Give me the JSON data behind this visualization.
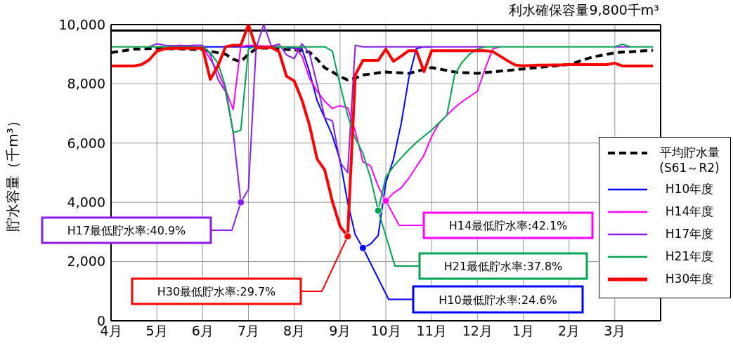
{
  "chart_data": {
    "type": "line",
    "ylabel": "貯水容量（千m³）",
    "categories": [
      "4月",
      null,
      null,
      null,
      null,
      null,
      "5月",
      null,
      null,
      null,
      null,
      null,
      "6月",
      null,
      null,
      null,
      null,
      null,
      "7月",
      null,
      null,
      null,
      null,
      null,
      "8月",
      null,
      null,
      null,
      null,
      null,
      "9月",
      null,
      null,
      null,
      null,
      null,
      "10月",
      null,
      null,
      null,
      null,
      null,
      "11月",
      null,
      null,
      null,
      null,
      null,
      "12月",
      null,
      null,
      null,
      null,
      null,
      "1月",
      null,
      null,
      null,
      null,
      null,
      "2月",
      null,
      null,
      null,
      null,
      null,
      "3月",
      null,
      null,
      null,
      null,
      null
    ],
    "ylim": [
      0,
      10000
    ],
    "yticks": [
      0,
      {
        "value": 2000,
        "label": "2,000"
      },
      {
        "value": 4000,
        "label": "4,000"
      },
      {
        "value": 6000,
        "label": "6,000"
      },
      {
        "value": 8000,
        "label": "8,000"
      },
      {
        "value": 10000,
        "label": "10,000"
      }
    ],
    "grid": true,
    "legend": "bottom right",
    "marker": "none",
    "ref_lines": [
      {
        "axis": "y",
        "value": 9800,
        "label": "利水確保容量9,800千m³",
        "color": "#000000"
      }
    ],
    "annotations": [
      "H17最低貯水率:40.9%",
      "H30最低貯水率:29.7%",
      "H10最低貯水率:24.6%",
      "H21最低貯水率:37.8%",
      "H14最低貯水率:42.1%"
    ],
    "series": [
      {
        "name": "平均貯水量 (S61～R2)",
        "color": "#000000",
        "line_style": "dashed",
        "values": [
          9050,
          9090,
          9130,
          9170,
          9180,
          9190,
          9200,
          9190,
          9180,
          9180,
          9170,
          9160,
          9150,
          9100,
          9050,
          9000,
          8830,
          8750,
          9000,
          9180,
          9210,
          9200,
          9180,
          9160,
          9150,
          9110,
          9070,
          8830,
          8540,
          8400,
          8250,
          8130,
          8190,
          8300,
          8330,
          8370,
          8400,
          8380,
          8370,
          8350,
          8420,
          8480,
          8550,
          8500,
          8450,
          8400,
          8380,
          8370,
          8350,
          8380,
          8400,
          8430,
          8450,
          8480,
          8500,
          8530,
          8550,
          8580,
          8600,
          8630,
          8650,
          8730,
          8820,
          8900,
          8950,
          9000,
          9050,
          9070,
          9080,
          9100,
          9120,
          9130
        ]
      },
      {
        "name": "H10年度",
        "color": "#0000ff",
        "line_style": "solid",
        "values": [
          null,
          null,
          null,
          null,
          null,
          null,
          null,
          null,
          null,
          null,
          null,
          null,
          9250,
          9250,
          9250,
          9250,
          9250,
          9250,
          9250,
          9250,
          null,
          null,
          null,
          9250,
          9200,
          9200,
          8400,
          7430,
          6840,
          6250,
          5430,
          4000,
          2900,
          2460,
          2590,
          2880,
          4660,
          5450,
          6640,
          8180,
          9190,
          9250,
          9250,
          null,
          null,
          null,
          null,
          null,
          null,
          null,
          null,
          null,
          null,
          null,
          null,
          null,
          null,
          null,
          null,
          null,
          null,
          null,
          null,
          null,
          null,
          null,
          null,
          null,
          null,
          null,
          null,
          null
        ]
      },
      {
        "name": "H14年度",
        "color": "#ff00ff",
        "line_style": "solid",
        "values": [
          null,
          null,
          null,
          null,
          null,
          null,
          null,
          null,
          9280,
          9300,
          9280,
          9260,
          9250,
          8830,
          8420,
          7810,
          7130,
          9260,
          9300,
          9290,
          9280,
          9270,
          9260,
          null,
          9250,
          8950,
          8190,
          7750,
          7410,
          7170,
          7260,
          7190,
          6400,
          5370,
          5230,
          4540,
          4050,
          4310,
          4480,
          4810,
          5200,
          5590,
          6220,
          6680,
          6940,
          7190,
          7400,
          7570,
          7750,
          8500,
          9180,
          9250,
          null,
          null,
          null,
          null,
          null,
          null,
          null,
          null,
          null,
          null,
          null,
          null,
          null,
          null,
          null,
          null,
          null,
          null,
          null,
          null
        ]
      },
      {
        "name": "H17年度",
        "color": "#8b1cf0",
        "line_style": "solid",
        "values": [
          null,
          null,
          null,
          null,
          null,
          9250,
          9350,
          9300,
          9290,
          9280,
          9290,
          9300,
          9300,
          9000,
          8150,
          7740,
          6380,
          4000,
          4430,
          9200,
          10000,
          9270,
          9340,
          8970,
          8850,
          9350,
          9030,
          7980,
          6850,
          6750,
          5350,
          5000,
          9300,
          9250,
          9250,
          9250,
          9250,
          9250,
          9250,
          9250,
          9250,
          9250,
          9250,
          9250,
          9250,
          9250,
          9250,
          9250,
          9250,
          9250,
          null,
          null,
          null,
          null,
          null,
          null,
          null,
          null,
          null,
          null,
          null,
          null,
          null,
          null,
          null,
          null,
          9250,
          9250,
          9250,
          null,
          null,
          null
        ]
      },
      {
        "name": "H21年度",
        "color": "#00a550",
        "line_style": "solid",
        "values": [
          9250,
          9250,
          9250,
          9250,
          9250,
          9250,
          9250,
          9250,
          9250,
          9250,
          9250,
          9250,
          9250,
          9050,
          8700,
          7900,
          6350,
          6430,
          9180,
          9250,
          9250,
          9250,
          9250,
          9250,
          9250,
          9250,
          9250,
          9250,
          9250,
          9100,
          7970,
          6930,
          6160,
          5650,
          4820,
          3720,
          4850,
          5210,
          5500,
          5770,
          6020,
          6230,
          6440,
          6690,
          6940,
          8300,
          8730,
          9010,
          9170,
          9250,
          9250,
          9250,
          9250,
          9250,
          9250,
          9250,
          9250,
          9250,
          9250,
          9250,
          9250,
          9250,
          9250,
          9250,
          9250,
          9250,
          9250,
          9340,
          9250,
          9250,
          9250,
          9250
        ]
      },
      {
        "name": "H30年度",
        "color": "#ff0000",
        "line_style": "solid",
        "values": [
          8600,
          8600,
          8600,
          8600,
          8650,
          8810,
          9100,
          9180,
          9200,
          9200,
          9200,
          9200,
          9200,
          8150,
          8600,
          9250,
          9300,
          9300,
          10000,
          9210,
          9220,
          9230,
          9090,
          8250,
          8100,
          7460,
          6600,
          5460,
          5090,
          4030,
          3190,
          2850,
          8300,
          8790,
          8790,
          8790,
          9170,
          8760,
          8930,
          9120,
          9120,
          8410,
          9120,
          9120,
          9120,
          9120,
          9120,
          9120,
          9120,
          9120,
          9090,
          8930,
          8770,
          8630,
          8610,
          8620,
          8630,
          8630,
          8640,
          8640,
          8650,
          8650,
          8650,
          8650,
          8650,
          8650,
          8700,
          8600,
          8600,
          8600,
          8600,
          8600
        ]
      }
    ]
  }
}
